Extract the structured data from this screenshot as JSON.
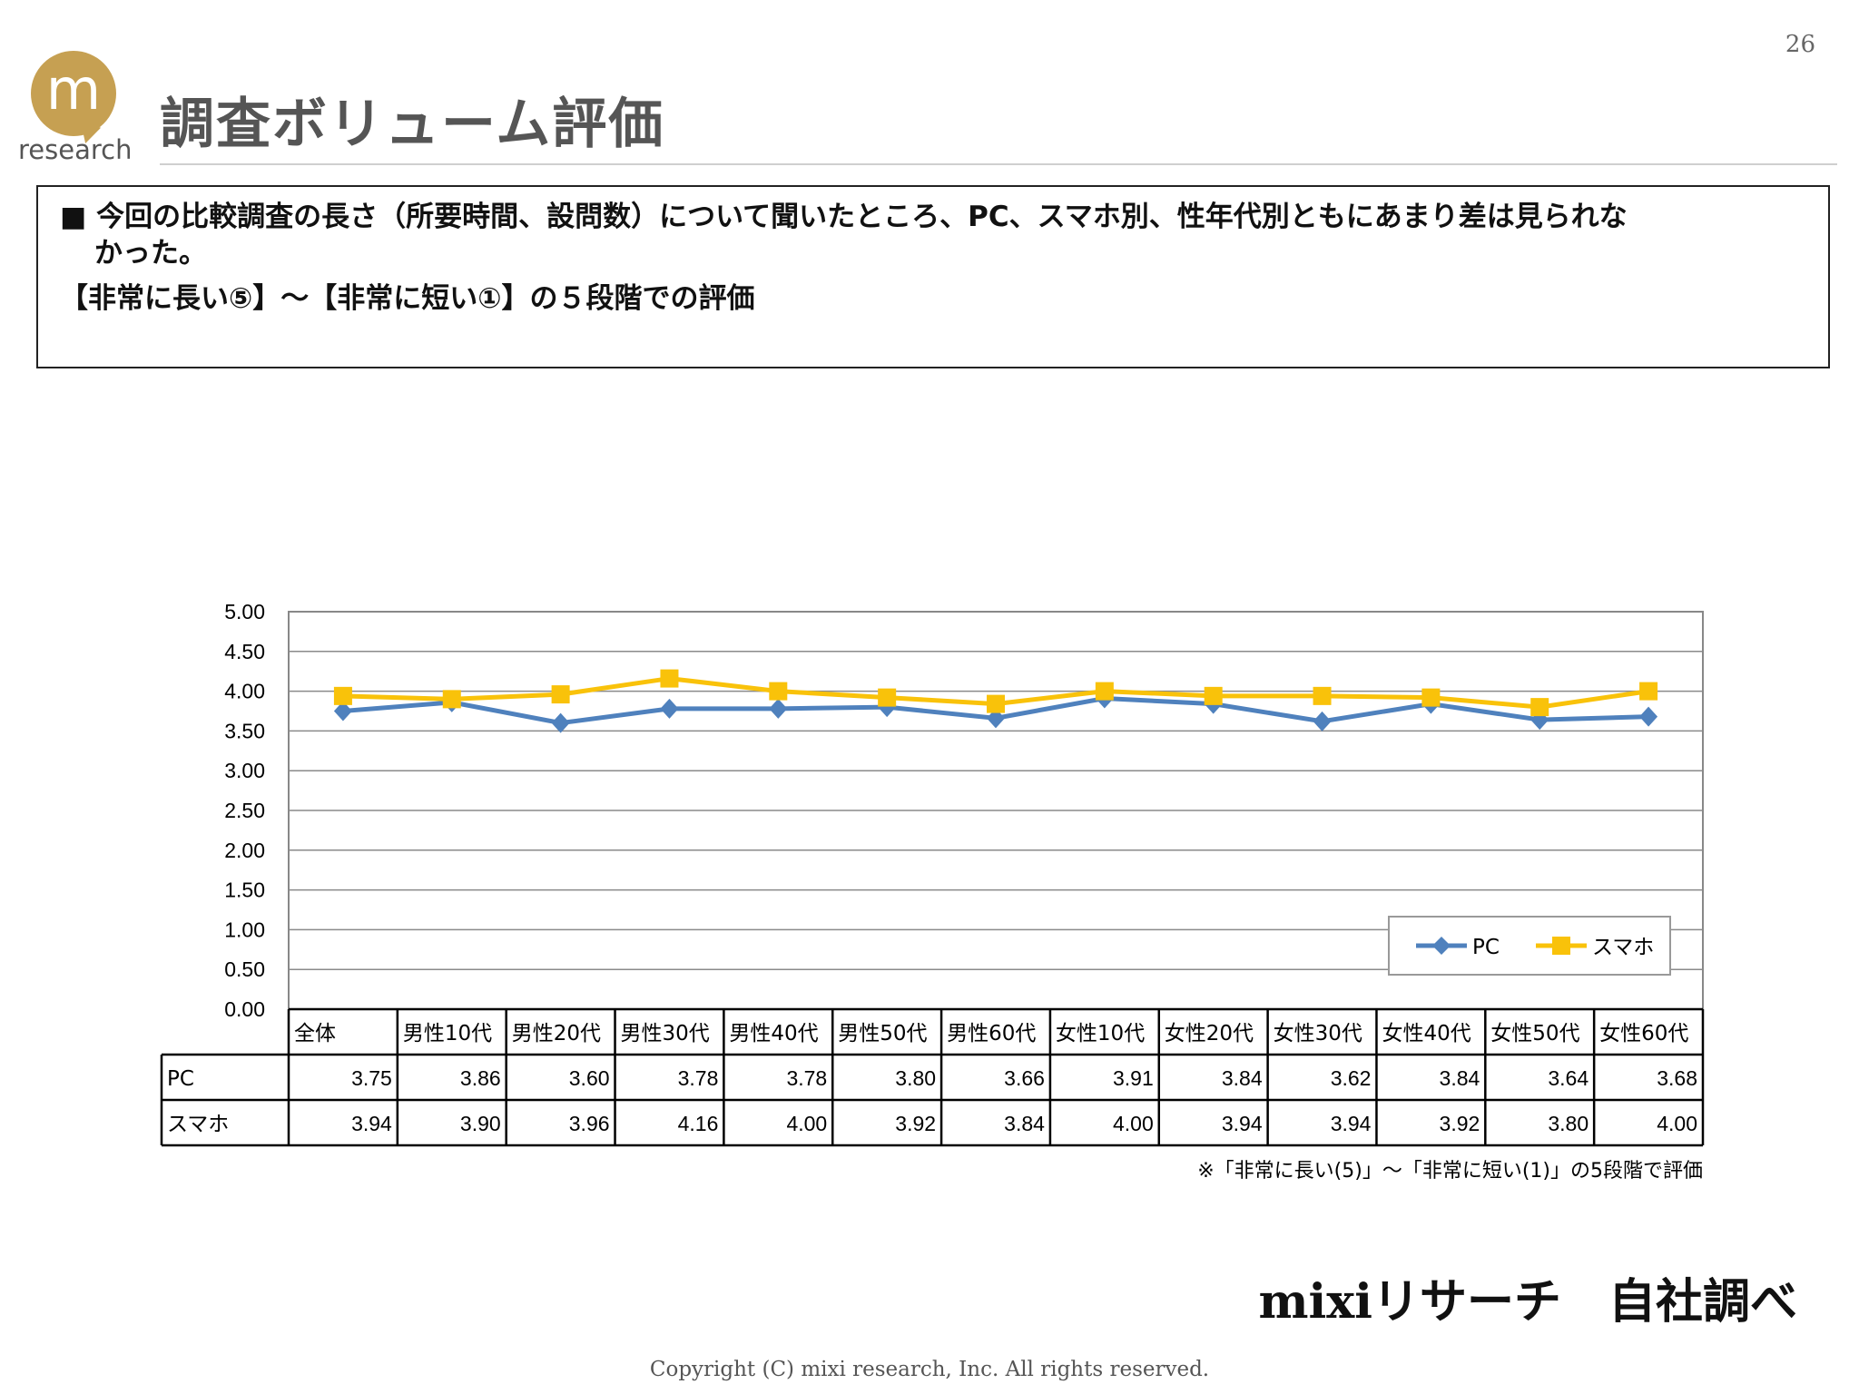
{
  "header": {
    "page_number": "26",
    "title": "調査ボリューム評価",
    "logo_mark": "m",
    "logo_text": "research"
  },
  "summary": {
    "line1": "■ 今回の比較調査の長さ（所要時間、設問数）について聞いたところ、PC、スマホ別、性年代別ともにあまり差は見られな",
    "line2": "かった。",
    "line3": "【非常に長い⑤】～【非常に短い①】の５段階での評価"
  },
  "chart_data": {
    "type": "line",
    "categories": [
      "全体",
      "男性10代",
      "男性20代",
      "男性30代",
      "男性40代",
      "男性50代",
      "男性60代",
      "女性10代",
      "女性20代",
      "女性30代",
      "女性40代",
      "女性50代",
      "女性60代"
    ],
    "series": [
      {
        "name": "PC",
        "values": [
          3.75,
          3.86,
          3.6,
          3.78,
          3.78,
          3.8,
          3.66,
          3.91,
          3.84,
          3.62,
          3.84,
          3.64,
          3.68
        ],
        "color": "#4f81bd",
        "marker": "diamond"
      },
      {
        "name": "スマホ",
        "values": [
          3.94,
          3.9,
          3.96,
          4.16,
          4.0,
          3.92,
          3.84,
          4.0,
          3.94,
          3.94,
          3.92,
          3.8,
          4.0
        ],
        "color": "#f9c20a",
        "marker": "square"
      }
    ],
    "ylim": [
      0,
      5
    ],
    "yticks": [
      "5.00",
      "4.50",
      "4.00",
      "3.50",
      "3.00",
      "2.50",
      "2.00",
      "1.50",
      "1.00",
      "0.50",
      "0.00"
    ],
    "value_labels": {
      "PC": [
        "3.75",
        "3.86",
        "3.60",
        "3.78",
        "3.78",
        "3.80",
        "3.66",
        "3.91",
        "3.84",
        "3.62",
        "3.84",
        "3.64",
        "3.68"
      ],
      "スマホ": [
        "3.94",
        "3.90",
        "3.96",
        "4.16",
        "4.00",
        "3.92",
        "3.84",
        "4.00",
        "3.94",
        "3.94",
        "3.92",
        "3.80",
        "4.00"
      ]
    },
    "grid": true,
    "legend_position": "bottom-right",
    "data_table": true
  },
  "footnote": "※「非常に長い(5)」～「非常に短い(1)」の5段階で評価",
  "source": "mixiリサーチ　自社調べ",
  "copyright": "Copyright (C) mixi research, Inc. All rights reserved."
}
